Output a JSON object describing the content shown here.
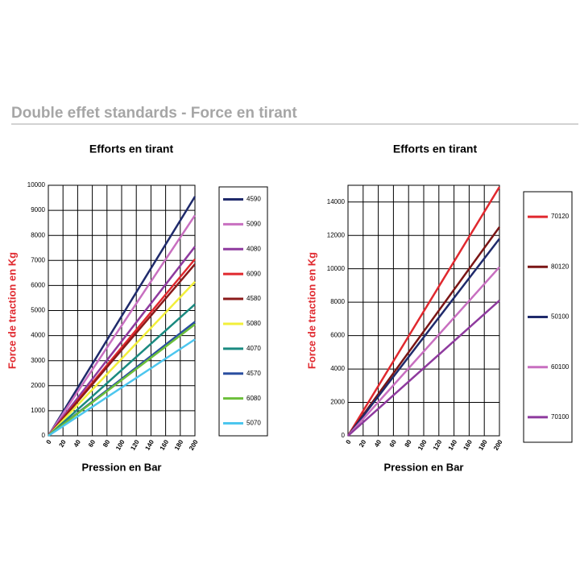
{
  "header": {
    "title": "Double effet standards - Force en tirant"
  },
  "chart_data": [
    {
      "type": "line",
      "title": "Efforts en tirant",
      "x_label": "Pression  en Bar",
      "y_label": "Force de traction en Kg",
      "x": [
        0,
        200
      ],
      "xlim": [
        0,
        200
      ],
      "xticks": [
        0,
        20,
        40,
        60,
        80,
        100,
        120,
        140,
        160,
        180,
        200
      ],
      "ylim": [
        0,
        10000
      ],
      "yticks": [
        0,
        1000,
        2000,
        3000,
        4000,
        5000,
        6000,
        7000,
        8000,
        9000,
        10000
      ],
      "grid": true,
      "legend": "right",
      "series": [
        {
          "name": "4590",
          "color": "#1f2a6b",
          "values": [
            0,
            9550
          ]
        },
        {
          "name": "5090",
          "color": "#c86fc0",
          "values": [
            0,
            8800
          ]
        },
        {
          "name": "4080",
          "color": "#8e3a9e",
          "values": [
            0,
            7550
          ]
        },
        {
          "name": "6090",
          "color": "#e0282e",
          "values": [
            0,
            7050
          ]
        },
        {
          "name": "4580",
          "color": "#8b1a1a",
          "values": [
            0,
            6850
          ]
        },
        {
          "name": "5080",
          "color": "#f2ef3a",
          "values": [
            0,
            6150
          ]
        },
        {
          "name": "4070",
          "color": "#1a8a80",
          "values": [
            0,
            5250
          ]
        },
        {
          "name": "4570",
          "color": "#2a4fa0",
          "values": [
            0,
            4550
          ]
        },
        {
          "name": "6080",
          "color": "#6cbf3a",
          "values": [
            0,
            4450
          ]
        },
        {
          "name": "5070",
          "color": "#4cc6ee",
          "values": [
            0,
            3850
          ]
        }
      ]
    },
    {
      "type": "line",
      "title": "Efforts en tirant",
      "x_label": "Pression  en Bar",
      "y_label": "Force de traction en Kg",
      "x": [
        0,
        200
      ],
      "xlim": [
        0,
        200
      ],
      "xticks": [
        0,
        20,
        40,
        60,
        80,
        100,
        120,
        140,
        160,
        180,
        200
      ],
      "ylim": [
        0,
        15000
      ],
      "yticks": [
        0,
        2000,
        4000,
        6000,
        8000,
        10000,
        12000,
        14000
      ],
      "grid": true,
      "legend": "right",
      "series": [
        {
          "name": "70120",
          "color": "#e0282e",
          "values": [
            0,
            14900
          ]
        },
        {
          "name": "80120",
          "color": "#7a1515",
          "values": [
            0,
            12500
          ]
        },
        {
          "name": "50100",
          "color": "#1f2a6b",
          "values": [
            0,
            11800
          ]
        },
        {
          "name": "60100",
          "color": "#c86fc0",
          "values": [
            0,
            10100
          ]
        },
        {
          "name": "70100",
          "color": "#8e3a9e",
          "values": [
            0,
            8100
          ]
        }
      ]
    }
  ]
}
